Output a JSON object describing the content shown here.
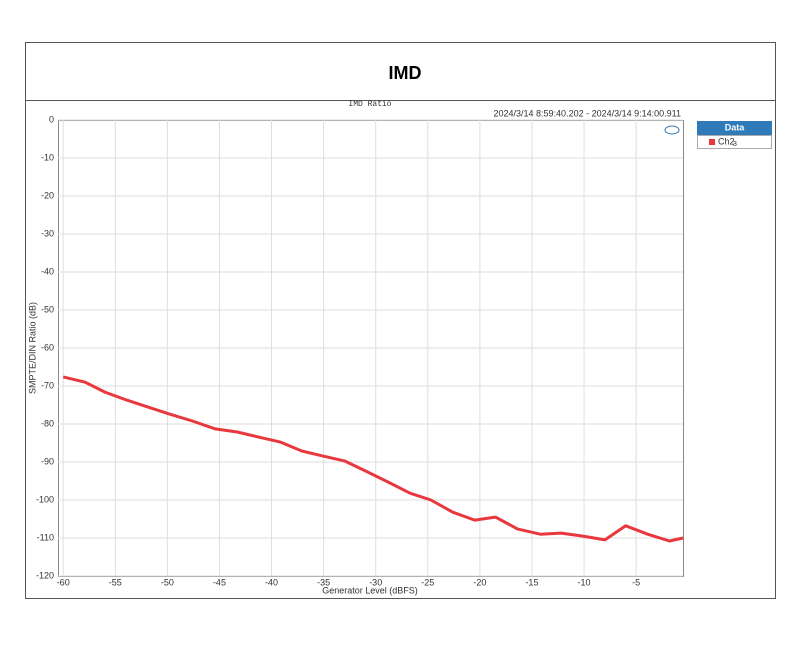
{
  "chart_data": {
    "type": "line",
    "title": "IMD",
    "subtitle": "IMD Ratio",
    "annotation": "2024/3/14 8:59:40.202 -   2024/3/14 9:14:00.911",
    "x_label": "Generator Level (dBFS)",
    "y_label": "SMPTE/DIN Ratio (dB)",
    "legend_title": "Data",
    "legend_index": "3",
    "x": [
      -60,
      -57.9,
      -56,
      -53.9,
      -51.9,
      -49.8,
      -47.6,
      -45.4,
      -43.3,
      -41.3,
      -39.2,
      -37.1,
      -35.1,
      -33,
      -30.8,
      -28.8,
      -26.7,
      -24.7,
      -22.6,
      -20.5,
      -18.5,
      -16.4,
      -14.2,
      -12.2,
      -10.1,
      -8,
      -6,
      -3.9,
      -1.8,
      -0.5
    ],
    "series": [
      {
        "name": "Ch2",
        "color": "#e8383d",
        "values": [
          -67.6,
          -69,
          -71.6,
          -73.7,
          -75.5,
          -77.4,
          -79.2,
          -81.3,
          -82.1,
          -83.4,
          -84.7,
          -87.1,
          -88.4,
          -89.7,
          -92.6,
          -95.3,
          -98.2,
          -100,
          -103.2,
          -105.3,
          -104.5,
          -107.6,
          -109,
          -108.7,
          -109.5,
          -110.5,
          -106.8,
          -109,
          -110.8,
          -110
        ]
      }
    ],
    "xlim": [
      -60.5,
      -0.5
    ],
    "ylim": [
      -120,
      0
    ],
    "xticks": [
      -60,
      -55,
      -50,
      -45,
      -40,
      -35,
      -30,
      -25,
      -20,
      -15,
      -10,
      -5
    ],
    "yticks": [
      0,
      -10,
      -20,
      -30,
      -40,
      -50,
      -60,
      -70,
      -80,
      -90,
      -100,
      -110,
      -120
    ],
    "grid": true
  }
}
